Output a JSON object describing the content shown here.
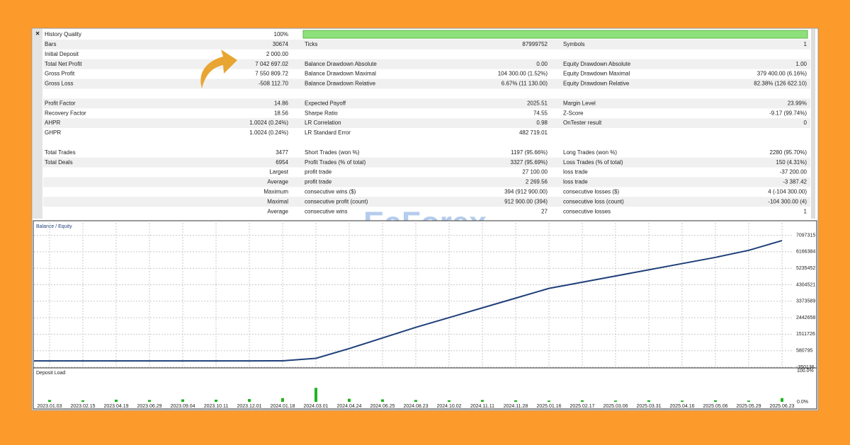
{
  "watermark": "EaForex",
  "report": {
    "groups": [
      [
        {
          "l1": "History Quality",
          "v1": "100%"
        },
        {
          "l1": "Bars",
          "v1": "30674",
          "l2": "Ticks",
          "v2": "87999752",
          "l3": "Symbols",
          "v3": "1"
        },
        {
          "l1": "Initial Deposit",
          "v1": "2 000.00"
        },
        {
          "l1": "Total Net Profit",
          "v1": "7 042 697.02",
          "l2": "Balance Drawdown Absolute",
          "v2": "0.00",
          "l3": "Equity Drawdown Absolute",
          "v3": "1.00"
        },
        {
          "l1": "Gross Profit",
          "v1": "7 550 809.72",
          "l2": "Balance Drawdown Maximal",
          "v2": "104 300.00 (1.52%)",
          "l3": "Equity Drawdown Maximal",
          "v3": "379 400.00 (6.16%)"
        },
        {
          "l1": "Gross Loss",
          "v1": "-508 112.70",
          "l2": "Balance Drawdown Relative",
          "v2": "6.67% (11 130.00)",
          "l3": "Equity Drawdown Relative",
          "v3": "82.38% (126 622.10)"
        }
      ],
      [
        {
          "l1": "Profit Factor",
          "v1": "14.86",
          "l2": "Expected Payoff",
          "v2": "2025.51",
          "l3": "Margin Level",
          "v3": "23.99%"
        },
        {
          "l1": "Recovery Factor",
          "v1": "18.56",
          "l2": "Sharpe Ratio",
          "v2": "74.55",
          "l3": "Z-Score",
          "v3": "-9.17 (99.74%)"
        },
        {
          "l1": "AHPR",
          "v1": "1.0024 (0.24%)",
          "l2": "LR Correlation",
          "v2": "0.98",
          "l3": "OnTester result",
          "v3": "0"
        },
        {
          "l1": "GHPR",
          "v1": "1.0024 (0.24%)",
          "l2": "LR Standard Error",
          "v2": "482 719.01"
        }
      ],
      [
        {
          "l1": "Total Trades",
          "v1": "3477",
          "l2": "Short Trades (won %)",
          "v2": "1197 (95.66%)",
          "l3": "Long Trades (won %)",
          "v3": "2280 (95.70%)"
        },
        {
          "l1": "Total Deals",
          "v1": "6954",
          "l2": "Profit Trades (% of total)",
          "v2": "3327 (95.69%)",
          "l3": "Loss Trades (% of total)",
          "v3": "150 (4.31%)"
        },
        {
          "s1": "Largest",
          "l2": "profit trade",
          "v2": "27 100.00",
          "l3": "loss trade",
          "v3": "-37 200.00"
        },
        {
          "s1": "Average",
          "l2": "profit trade",
          "v2": "2 269.56",
          "l3": "loss trade",
          "v3": "-3 387.42"
        },
        {
          "s1": "Maximum",
          "l2": "consecutive wins ($)",
          "v2": "394 (912 900.00)",
          "l3": "consecutive losses ($)",
          "v3": "4 (-104 300.00)"
        },
        {
          "s1": "Maximal",
          "l2": "consecutive profit (count)",
          "v2": "912 900.00 (394)",
          "l3": "consecutive loss (count)",
          "v3": "-104 300.00 (4)"
        },
        {
          "s1": "Average",
          "l2": "consecutive wins",
          "v2": "27",
          "l3": "consecutive losses",
          "v3": "1"
        }
      ]
    ]
  },
  "chart_data": {
    "type": "line",
    "legend": "Balance / Equity",
    "color": "#1f3f7a",
    "categories": [
      "2023.01.03",
      "2023.02.15",
      "2023.04.19",
      "2023.06.29",
      "2023.09.04",
      "2023.10.11",
      "2023.12.01",
      "2024.01.18",
      "2024.03.01",
      "2024.04.24",
      "2024.06.25",
      "2024.08.23",
      "2024.10.02",
      "2024.11.11",
      "2024.11.28",
      "2025.01.16",
      "2025.02.17",
      "2025.03.06",
      "2025.03.31",
      "2025.04.16",
      "2025.05.06",
      "2025.05.29",
      "2025.06.23"
    ],
    "values": [
      2000,
      2000,
      2000,
      2000,
      2000,
      2000,
      2000,
      10000,
      150000,
      700000,
      1300000,
      1900000,
      2450000,
      3000000,
      3550000,
      4100000,
      4450000,
      4800000,
      5150000,
      5500000,
      5850000,
      6250000,
      6800000
    ],
    "ylim": [
      -350136,
      7800000
    ],
    "yticks": [
      7097315,
      6166384,
      5235452,
      4304521,
      3373589,
      2442658,
      1511726,
      580795,
      -350136
    ],
    "grid": true
  },
  "deposit_load": {
    "title": "Deposit Load",
    "color": "#22b422",
    "ylim": [
      0,
      100
    ],
    "yticks": [
      {
        "value": 100,
        "label": "100.0%"
      },
      {
        "value": 0,
        "label": "0.0%"
      }
    ],
    "values": [
      6,
      5,
      7,
      6,
      8,
      7,
      9,
      12,
      45,
      10,
      8,
      6,
      5,
      6,
      5,
      4,
      5,
      4,
      5,
      4,
      5,
      4,
      12
    ]
  }
}
